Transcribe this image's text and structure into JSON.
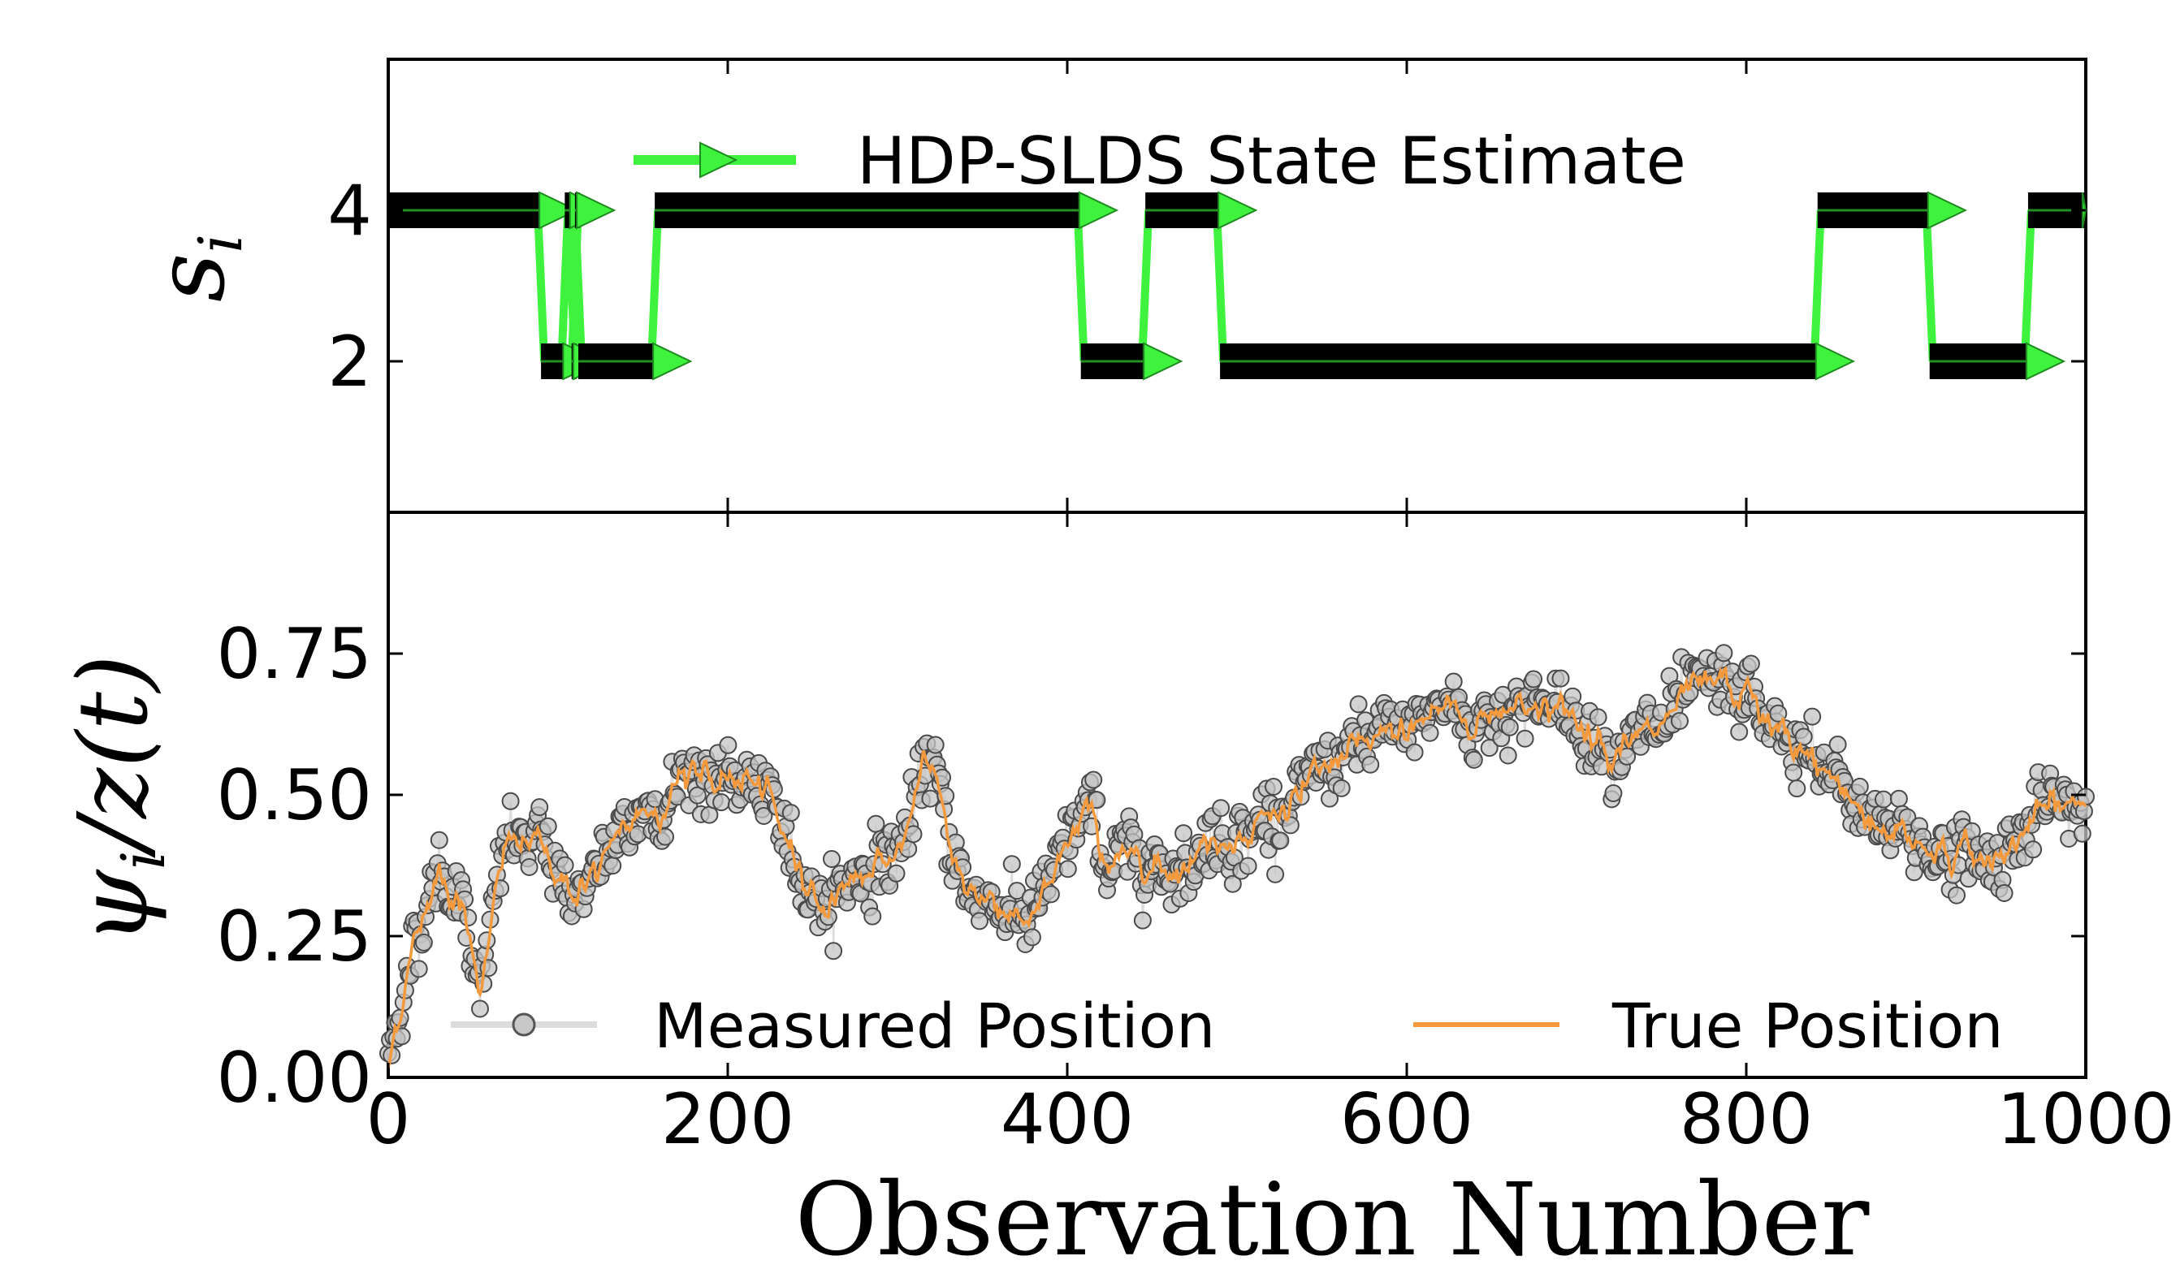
{
  "chart_data": [
    {
      "type": "step",
      "panel": "top",
      "ylabel": "s_i",
      "ylabel_display": "s",
      "ylabel_sub": "i",
      "yticks": [
        2,
        4
      ],
      "ytick_labels": [
        "2",
        "4"
      ],
      "ylim": [
        0,
        6
      ],
      "xlim": [
        0,
        1000
      ],
      "legend": "HDP-SLDS State Estimate",
      "color": "#3ef23e",
      "segments": [
        {
          "start": 0,
          "end": 90,
          "state": 4
        },
        {
          "start": 90,
          "end": 104,
          "state": 2
        },
        {
          "start": 104,
          "end": 108,
          "state": 4
        },
        {
          "start": 108,
          "end": 110,
          "state": 2
        },
        {
          "start": 110,
          "end": 112,
          "state": 4
        },
        {
          "start": 112,
          "end": 157,
          "state": 2
        },
        {
          "start": 157,
          "end": 408,
          "state": 4
        },
        {
          "start": 408,
          "end": 446,
          "state": 2
        },
        {
          "start": 446,
          "end": 490,
          "state": 4
        },
        {
          "start": 490,
          "end": 842,
          "state": 2
        },
        {
          "start": 842,
          "end": 908,
          "state": 4
        },
        {
          "start": 908,
          "end": 966,
          "state": 2
        },
        {
          "start": 966,
          "end": 1000,
          "state": 4
        }
      ]
    },
    {
      "type": "line",
      "panel": "bottom",
      "ylabel": "ψ_i / z(t)",
      "ylabel_display": "ψ",
      "ylabel_sub": "i",
      "ylabel_rest": "/z(t)",
      "yticks": [
        0.0,
        0.25,
        0.5,
        0.75
      ],
      "ytick_labels": [
        "0.00",
        "0.25",
        "0.50",
        "0.75"
      ],
      "ylim": [
        0.0,
        1.0
      ],
      "xlim": [
        0,
        1000
      ],
      "xticks": [
        0,
        200,
        400,
        600,
        800,
        1000
      ],
      "xtick_labels": [
        "0",
        "200",
        "400",
        "600",
        "800",
        "1000"
      ],
      "xlabel": "Observation Number",
      "series": [
        {
          "name": "Measured Position",
          "style": "markers",
          "color": "#9a9a9a"
        },
        {
          "name": "True Position",
          "style": "line",
          "color": "#f59a3c"
        }
      ],
      "trend": {
        "x": [
          0,
          10,
          30,
          45,
          55,
          70,
          90,
          110,
          130,
          150,
          170,
          180,
          195,
          210,
          230,
          255,
          280,
          300,
          320,
          340,
          360,
          380,
          395,
          410,
          425,
          440,
          460,
          480,
          500,
          520,
          540,
          560,
          580,
          600,
          620,
          640,
          660,
          680,
          700,
          720,
          740,
          760,
          780,
          800,
          820,
          840,
          860,
          880,
          900,
          920,
          940,
          960,
          980,
          1000
        ],
        "y": [
          0.02,
          0.18,
          0.38,
          0.3,
          0.17,
          0.42,
          0.4,
          0.33,
          0.38,
          0.47,
          0.52,
          0.56,
          0.5,
          0.54,
          0.44,
          0.31,
          0.37,
          0.4,
          0.55,
          0.33,
          0.31,
          0.29,
          0.36,
          0.48,
          0.38,
          0.4,
          0.38,
          0.41,
          0.44,
          0.46,
          0.5,
          0.56,
          0.58,
          0.62,
          0.66,
          0.63,
          0.66,
          0.67,
          0.62,
          0.6,
          0.59,
          0.64,
          0.68,
          0.67,
          0.6,
          0.55,
          0.5,
          0.45,
          0.42,
          0.4,
          0.38,
          0.43,
          0.47,
          0.48
        ]
      },
      "n_points": 1000,
      "noise_sd": 0.03
    }
  ]
}
